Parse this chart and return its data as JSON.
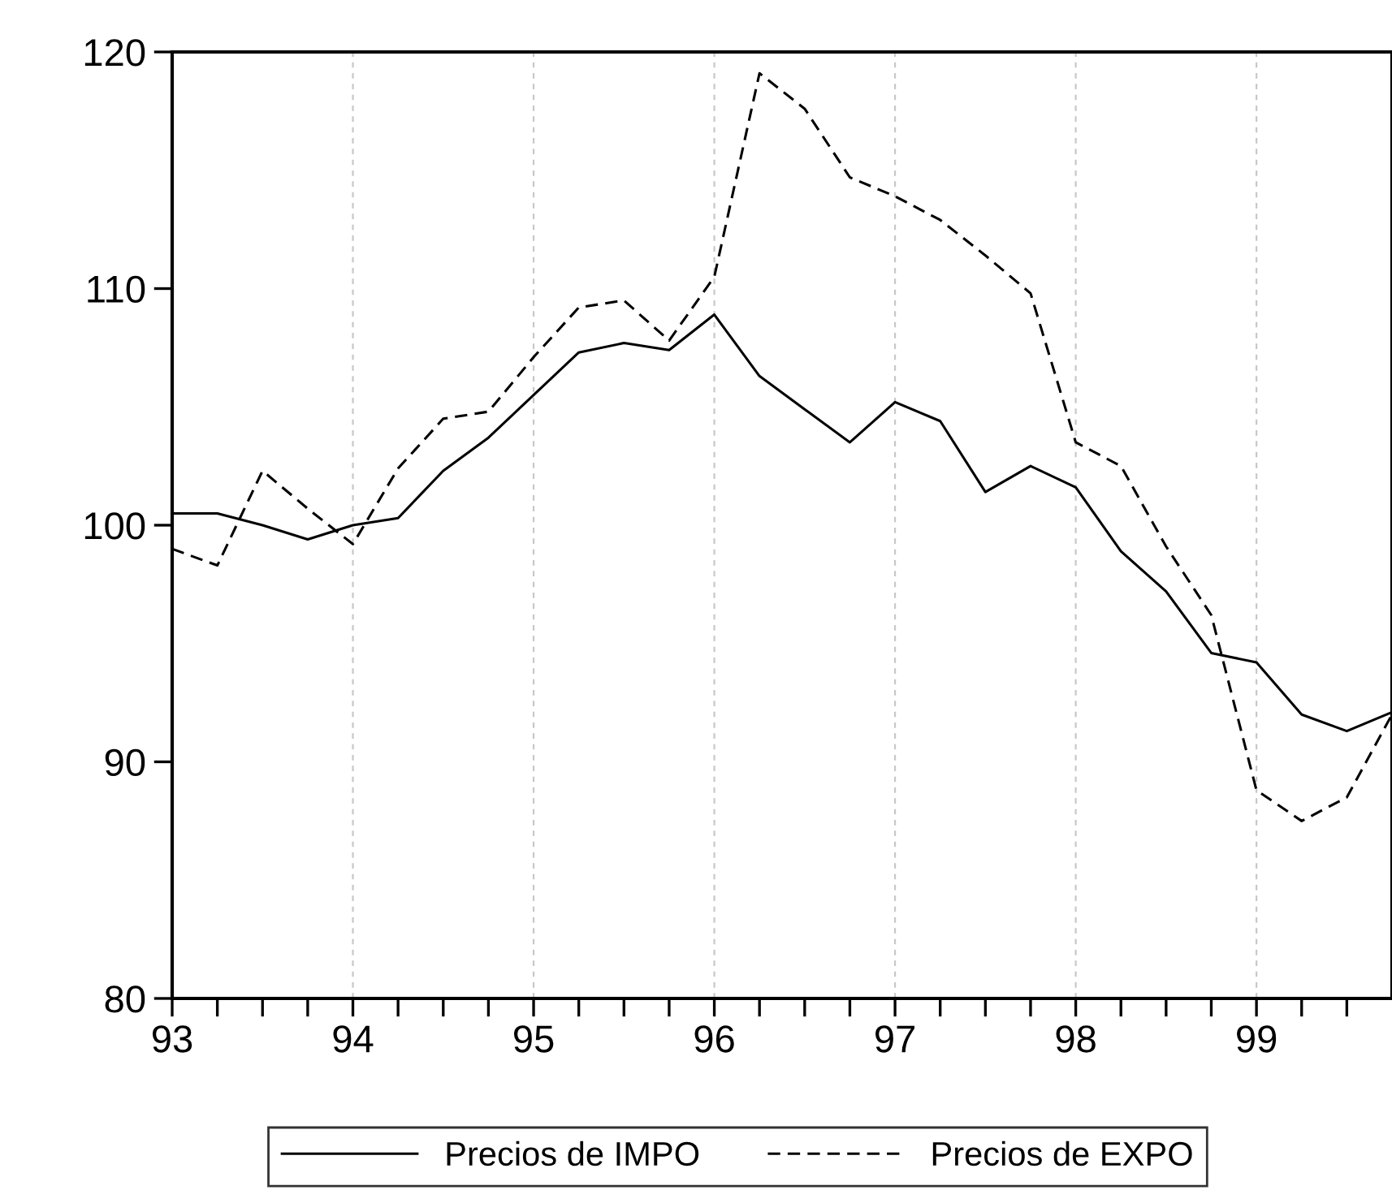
{
  "chart_data": {
    "type": "line",
    "x": [
      93.0,
      93.25,
      93.5,
      93.75,
      94.0,
      94.25,
      94.5,
      94.75,
      95.0,
      95.25,
      95.5,
      95.75,
      96.0,
      96.25,
      96.5,
      96.75,
      97.0,
      97.25,
      97.5,
      97.75,
      98.0,
      98.25,
      98.5,
      98.75,
      99.0,
      99.25,
      99.5,
      99.75
    ],
    "series": [
      {
        "name": "Precios de IMPO",
        "color": "#000000",
        "line_style": "solid",
        "values": [
          100.5,
          100.5,
          100.0,
          99.4,
          100.0,
          100.3,
          102.3,
          103.7,
          105.5,
          107.3,
          107.7,
          107.4,
          108.9,
          106.3,
          104.9,
          103.5,
          105.2,
          104.4,
          101.4,
          102.5,
          101.6,
          98.9,
          97.2,
          94.6,
          94.2,
          92.0,
          91.3,
          92.1
        ]
      },
      {
        "name": "Precios de EXPO",
        "color": "#000000",
        "line_style": "dashed",
        "values": [
          99.0,
          98.3,
          102.3,
          100.7,
          99.2,
          102.4,
          104.5,
          104.8,
          107.1,
          109.2,
          109.5,
          107.8,
          110.5,
          119.1,
          117.6,
          114.7,
          113.9,
          112.9,
          111.4,
          109.8,
          103.5,
          102.5,
          99.1,
          96.2,
          88.8,
          87.5,
          88.5,
          92.0
        ]
      }
    ],
    "xlim": [
      93,
      99.75
    ],
    "ylim": [
      80,
      120
    ],
    "xticks": [
      93,
      {
        "value": 93.25,
        "label": null
      },
      {
        "value": 93.5,
        "label": null
      },
      {
        "value": 93.75,
        "label": null
      },
      94,
      {
        "value": 94.25,
        "label": null
      },
      {
        "value": 94.5,
        "label": null
      },
      {
        "value": 94.75,
        "label": null
      },
      95,
      {
        "value": 95.25,
        "label": null
      },
      {
        "value": 95.5,
        "label": null
      },
      {
        "value": 95.75,
        "label": null
      },
      96,
      {
        "value": 96.25,
        "label": null
      },
      {
        "value": 96.5,
        "label": null
      },
      {
        "value": 96.75,
        "label": null
      },
      97,
      {
        "value": 97.25,
        "label": null
      },
      {
        "value": 97.5,
        "label": null
      },
      {
        "value": 97.75,
        "label": null
      },
      98,
      {
        "value": 98.25,
        "label": null
      },
      {
        "value": 98.5,
        "label": null
      },
      {
        "value": 98.75,
        "label": null
      },
      99,
      {
        "value": 99.25,
        "label": null
      },
      {
        "value": 99.5,
        "label": null
      }
    ],
    "yticks": [
      80,
      90,
      100,
      110,
      120
    ],
    "grid": "x",
    "legend": "bottom",
    "marker": "none"
  }
}
